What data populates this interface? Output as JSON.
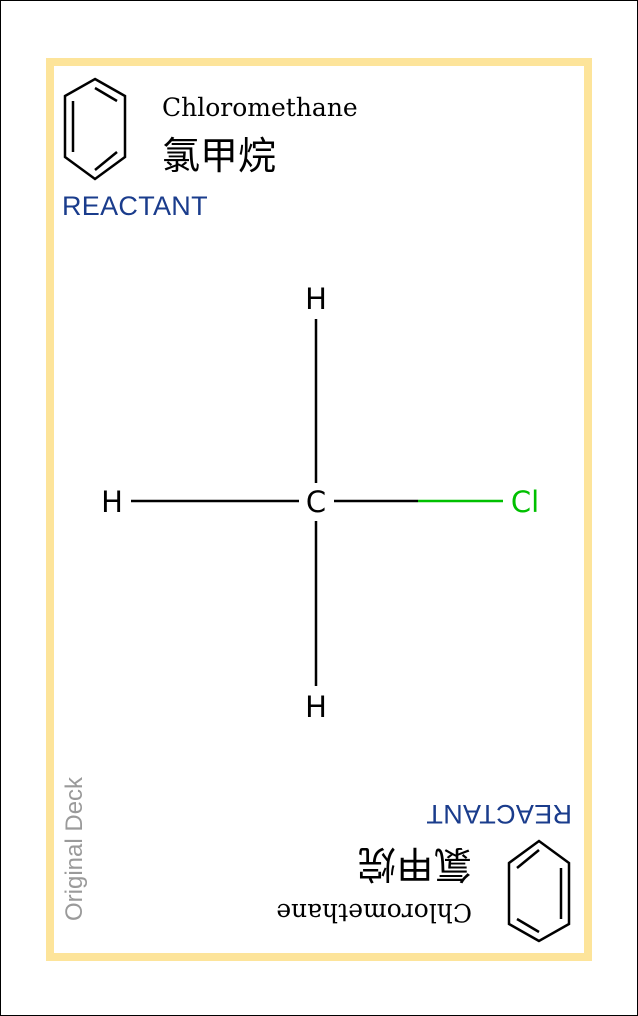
{
  "card": {
    "name_en": "Chloromethane",
    "name_zh": "氯甲烷",
    "role": "REACTANT",
    "deck": "Original Deck",
    "colors": {
      "border": "#fde49a",
      "role_text": "#1a3c8c",
      "chlorine": "#00c000",
      "deck_text": "#9a9a9a"
    },
    "icon": "benzene-ring-icon"
  },
  "molecule": {
    "formula": "CH3Cl",
    "atoms": {
      "center": "C",
      "top": "H",
      "left": "H",
      "bottom": "H",
      "right": "Cl"
    }
  }
}
